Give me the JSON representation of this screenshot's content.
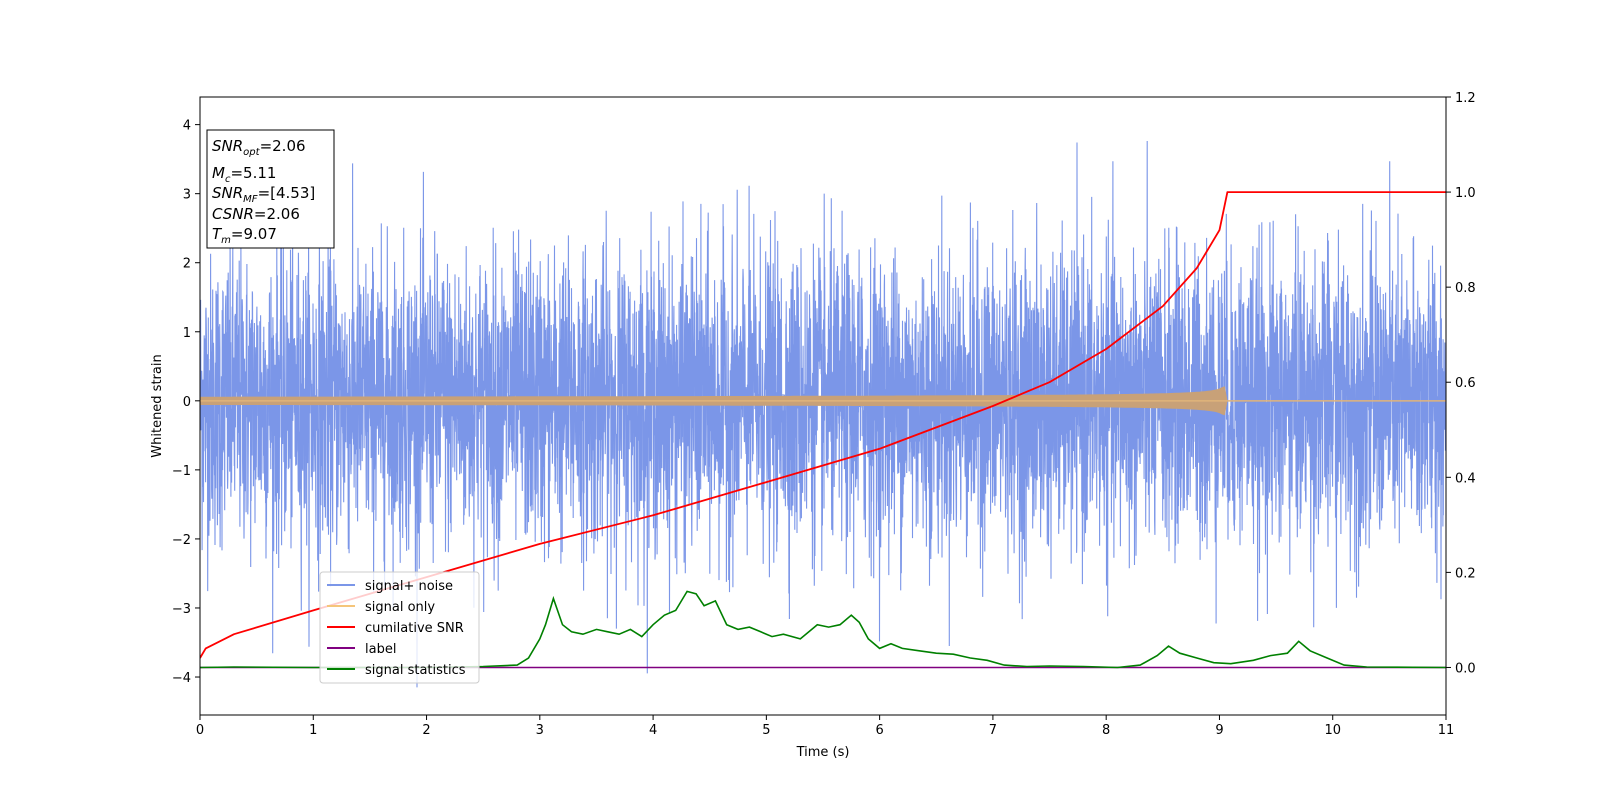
{
  "chart_data": {
    "type": "line",
    "xlabel": "Time (s)",
    "ylabel": "Whitened strain",
    "xlim": [
      0,
      11
    ],
    "ylim": [
      -4.55,
      4.4
    ],
    "y2lim": [
      -0.1,
      1.2
    ],
    "x_ticks": [
      "0",
      "1",
      "2",
      "3",
      "4",
      "5",
      "6",
      "7",
      "8",
      "9",
      "10",
      "11"
    ],
    "y_ticks": [
      "4",
      "3",
      "2",
      "1",
      "0",
      "−1",
      "−2",
      "−3",
      "−4"
    ],
    "y2_ticks": [
      "1.2",
      "1.0",
      "0.8",
      "0.6",
      "0.4",
      "0.2",
      "0.0"
    ],
    "grid": false,
    "legend_position": "lower-left",
    "info_box": {
      "snr_opt": {
        "sym": "SNR",
        "sub": "opt",
        "value": "=2.06"
      },
      "mc": {
        "sym": "M",
        "sub": "c",
        "value": "=5.11"
      },
      "snr_mf": {
        "sym": "SNR",
        "sub": "MF",
        "value": "=[4.53]"
      },
      "csnr": {
        "sym": "CSNR",
        "value": "=2.06"
      },
      "tm": {
        "sym": "T",
        "sub": "m",
        "value": "=9.07"
      }
    },
    "series": [
      {
        "name": "signal+ noise",
        "color": "#7b96e8",
        "axis": "left",
        "description_values": {
          "amplitude_typical": 1.6,
          "amplitude_max": 4.0,
          "min": -4.15,
          "x_range": [
            0,
            11
          ]
        }
      },
      {
        "name": "signal only",
        "color": "#f5c57a",
        "axis": "left",
        "merger_time": 9.07,
        "peak_amplitude": 0.2
      },
      {
        "name": "cumilative SNR",
        "color": "#ff0000",
        "axis": "right",
        "x": [
          0,
          0.05,
          0.3,
          1,
          2,
          3,
          4,
          5,
          6,
          7,
          7.5,
          8,
          8.5,
          8.8,
          9.0,
          9.07,
          11
        ],
        "y": [
          0.02,
          0.04,
          0.07,
          0.12,
          0.19,
          0.26,
          0.32,
          0.39,
          0.46,
          0.55,
          0.6,
          0.67,
          0.76,
          0.84,
          0.92,
          1.0,
          1.0
        ]
      },
      {
        "name": "label",
        "color": "#800080",
        "axis": "right",
        "x": [
          0,
          11
        ],
        "y": [
          0,
          0
        ]
      },
      {
        "name": "signal statistics",
        "color": "#008000",
        "axis": "right",
        "x": [
          0,
          0.3,
          1.0,
          2.0,
          2.5,
          2.8,
          2.9,
          3.0,
          3.05,
          3.12,
          3.2,
          3.28,
          3.38,
          3.5,
          3.6,
          3.7,
          3.8,
          3.9,
          4.0,
          4.1,
          4.2,
          4.3,
          4.38,
          4.45,
          4.55,
          4.65,
          4.75,
          4.85,
          4.95,
          5.05,
          5.15,
          5.3,
          5.45,
          5.55,
          5.65,
          5.75,
          5.82,
          5.9,
          6.0,
          6.1,
          6.2,
          6.35,
          6.5,
          6.65,
          6.8,
          6.95,
          7.1,
          7.3,
          7.5,
          7.8,
          8.1,
          8.3,
          8.45,
          8.55,
          8.65,
          8.8,
          8.95,
          9.1,
          9.3,
          9.45,
          9.6,
          9.7,
          9.8,
          9.95,
          10.1,
          10.3,
          11
        ],
        "y": [
          0.0,
          0.001,
          0.0,
          0.0,
          0.002,
          0.005,
          0.02,
          0.06,
          0.09,
          0.145,
          0.09,
          0.075,
          0.07,
          0.08,
          0.075,
          0.07,
          0.08,
          0.065,
          0.09,
          0.11,
          0.12,
          0.16,
          0.155,
          0.13,
          0.14,
          0.09,
          0.08,
          0.085,
          0.075,
          0.065,
          0.07,
          0.06,
          0.09,
          0.085,
          0.09,
          0.11,
          0.095,
          0.06,
          0.04,
          0.05,
          0.04,
          0.035,
          0.03,
          0.028,
          0.02,
          0.015,
          0.005,
          0.002,
          0.003,
          0.002,
          0.0,
          0.005,
          0.025,
          0.045,
          0.03,
          0.02,
          0.01,
          0.008,
          0.015,
          0.025,
          0.03,
          0.055,
          0.035,
          0.02,
          0.005,
          0.001,
          0.0
        ]
      }
    ]
  }
}
